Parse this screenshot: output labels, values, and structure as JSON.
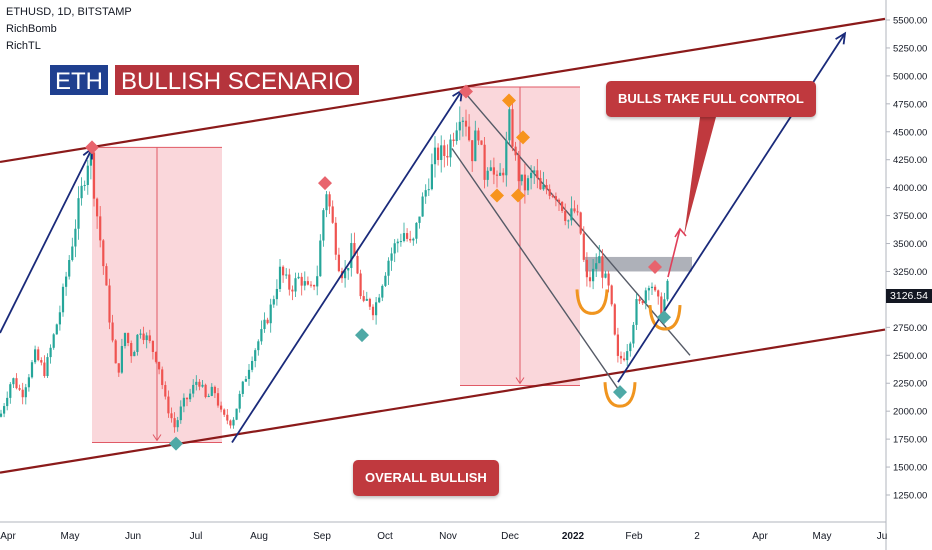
{
  "header": {
    "symbol_line": "ETHUSD, 1D, BITSTAMP",
    "indicator_1": "RichBomb",
    "indicator_2": "RichTL"
  },
  "banner": {
    "ticker": "ETH",
    "title": "BULLISH SCENARIO"
  },
  "annotations": {
    "bulls": "BULLS TAKE FULL CONTROL",
    "overall": "OVERALL BULLISH"
  },
  "colors": {
    "up": "#26a69a",
    "down": "#ef5350",
    "channel": "#8b1a1a",
    "trend": "#1a2a7a",
    "zone": "#f8c9cf"
  },
  "chart_data": {
    "type": "candlestick",
    "symbol": "ETHUSD",
    "interval": "1D",
    "exchange": "BITSTAMP",
    "last_price": "3126.54",
    "y_ticks": [
      1250,
      1500,
      1750,
      2000,
      2250,
      2500,
      2750,
      3000,
      3250,
      3500,
      3750,
      4000,
      4250,
      4500,
      4750,
      5000,
      5250,
      5500
    ],
    "y_tick_labels": [
      "1250.00",
      "1500.00",
      "1750.00",
      "2000.00",
      "2250.00",
      "2500.00",
      "2750.00",
      "3000.00",
      "3250.00",
      "3500.00",
      "3750.00",
      "4000.00",
      "4250.00",
      "4500.00",
      "4750.00",
      "5000.00",
      "5250.00",
      "5500.00"
    ],
    "x_tick_labels": [
      "Apr",
      "May",
      "Jun",
      "Jul",
      "Aug",
      "Sep",
      "Oct",
      "Nov",
      "Dec",
      "2022",
      "Feb",
      "2",
      "Apr",
      "May",
      "Ju"
    ],
    "ylim": [
      1150,
      5600
    ],
    "grid": false,
    "price_path": [
      [
        0,
        1950
      ],
      [
        12,
        2300
      ],
      [
        22,
        2150
      ],
      [
        35,
        2500
      ],
      [
        45,
        2350
      ],
      [
        60,
        2900
      ],
      [
        72,
        3500
      ],
      [
        80,
        3900
      ],
      [
        90,
        4350
      ],
      [
        95,
        3900
      ],
      [
        100,
        3550
      ],
      [
        110,
        2800
      ],
      [
        117,
        2300
      ],
      [
        125,
        2700
      ],
      [
        132,
        2500
      ],
      [
        140,
        2750
      ],
      [
        150,
        2600
      ],
      [
        158,
        2450
      ],
      [
        165,
        2100
      ],
      [
        175,
        1850
      ],
      [
        182,
        2050
      ],
      [
        190,
        2150
      ],
      [
        198,
        2300
      ],
      [
        206,
        2100
      ],
      [
        214,
        2200
      ],
      [
        222,
        1950
      ],
      [
        232,
        1900
      ],
      [
        242,
        2200
      ],
      [
        252,
        2500
      ],
      [
        262,
        2700
      ],
      [
        270,
        2900
      ],
      [
        280,
        3250
      ],
      [
        290,
        3100
      ],
      [
        300,
        3200
      ],
      [
        310,
        3050
      ],
      [
        318,
        3250
      ],
      [
        322,
        3700
      ],
      [
        326,
        4000
      ],
      [
        332,
        3700
      ],
      [
        338,
        3350
      ],
      [
        344,
        3200
      ],
      [
        352,
        3450
      ],
      [
        357,
        3300
      ],
      [
        362,
        2900
      ],
      [
        368,
        3000
      ],
      [
        374,
        2900
      ],
      [
        380,
        3100
      ],
      [
        388,
        3350
      ],
      [
        396,
        3500
      ],
      [
        404,
        3600
      ],
      [
        412,
        3450
      ],
      [
        420,
        3800
      ],
      [
        428,
        4050
      ],
      [
        436,
        4300
      ],
      [
        446,
        4300
      ],
      [
        452,
        4450
      ],
      [
        460,
        4700
      ],
      [
        466,
        4600
      ],
      [
        472,
        4300
      ],
      [
        478,
        4550
      ],
      [
        484,
        4100
      ],
      [
        490,
        4300
      ],
      [
        496,
        4000
      ],
      [
        504,
        4200
      ],
      [
        510,
        4650
      ],
      [
        514,
        4300
      ],
      [
        520,
        4050
      ],
      [
        526,
        4000
      ],
      [
        534,
        4150
      ],
      [
        540,
        3950
      ],
      [
        548,
        4000
      ],
      [
        556,
        3950
      ],
      [
        562,
        3850
      ],
      [
        568,
        3700
      ],
      [
        574,
        3800
      ],
      [
        580,
        3650
      ],
      [
        586,
        3150
      ],
      [
        592,
        3200
      ],
      [
        598,
        3400
      ],
      [
        604,
        3200
      ],
      [
        610,
        3050
      ],
      [
        614,
        2700
      ],
      [
        618,
        2450
      ],
      [
        624,
        2500
      ],
      [
        630,
        2650
      ],
      [
        636,
        2950
      ],
      [
        640,
        2950
      ],
      [
        646,
        3100
      ],
      [
        650,
        3200
      ],
      [
        656,
        3000
      ],
      [
        662,
        2900
      ],
      [
        668,
        3126
      ]
    ],
    "channel_lines": [
      {
        "from": [
          0,
          4230
        ],
        "to": [
          885,
          5510
        ]
      },
      {
        "from": [
          0,
          1450
        ],
        "to": [
          885,
          2730
        ]
      }
    ],
    "trend_lines": [
      {
        "from": [
          0,
          2700
        ],
        "to": [
          92,
          4350
        ]
      },
      {
        "from": [
          232,
          1720
        ],
        "to": [
          462,
          4870
        ]
      },
      {
        "from": [
          618,
          2260
        ],
        "to": [
          845,
          5380
        ],
        "arrow": true
      }
    ],
    "descending_channel": [
      {
        "from": [
          463,
          4870
        ],
        "to": [
          690,
          2500
        ]
      },
      {
        "from": [
          452,
          4350
        ],
        "to": [
          618,
          2200
        ]
      }
    ],
    "resistance_box": {
      "x": [
        585,
        692
      ],
      "y": [
        3250,
        3380
      ]
    },
    "correction_zones": [
      {
        "x": [
          92,
          222
        ],
        "y": [
          1720,
          4360
        ]
      },
      {
        "x": [
          460,
          580
        ],
        "y": [
          2230,
          4900
        ]
      }
    ],
    "arrows": [
      {
        "from": [
          668,
          3200
        ],
        "to": [
          680,
          3630
        ],
        "label": "bulls"
      }
    ],
    "markers": [
      {
        "x": 92,
        "y": 4360,
        "kind": "red"
      },
      {
        "x": 325,
        "y": 4040,
        "kind": "red"
      },
      {
        "x": 466,
        "y": 4860,
        "kind": "red"
      },
      {
        "x": 655,
        "y": 3290,
        "kind": "red"
      },
      {
        "x": 176,
        "y": 1710,
        "kind": "teal"
      },
      {
        "x": 362,
        "y": 2680,
        "kind": "teal"
      },
      {
        "x": 620,
        "y": 2170,
        "kind": "teal"
      },
      {
        "x": 664,
        "y": 2840,
        "kind": "teal"
      },
      {
        "x": 509,
        "y": 4780,
        "kind": "orange"
      },
      {
        "x": 523,
        "y": 4450,
        "kind": "orange"
      },
      {
        "x": 497,
        "y": 3930,
        "kind": "orange"
      },
      {
        "x": 518,
        "y": 3930,
        "kind": "orange"
      }
    ],
    "cups": [
      {
        "x": 592,
        "y": 3000
      },
      {
        "x": 620,
        "y": 2170
      },
      {
        "x": 665,
        "y": 2860
      }
    ]
  }
}
